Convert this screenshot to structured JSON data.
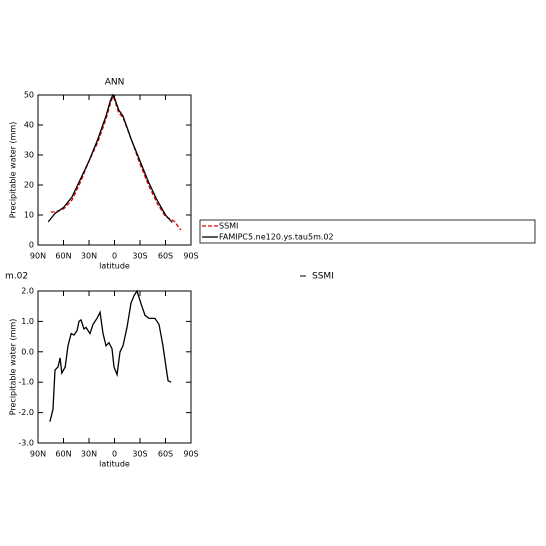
{
  "chart_data": [
    {
      "type": "line",
      "title": "ANN",
      "ylabel": "Precipitable water (mm)",
      "xlabel": "latitude",
      "xlim": [
        90,
        -90
      ],
      "xticks": [
        {
          "value": 90,
          "label": "90N"
        },
        {
          "value": 60,
          "label": "60N"
        },
        {
          "value": 30,
          "label": "30N"
        },
        0,
        {
          "value": -30,
          "label": "30S"
        },
        {
          "value": -60,
          "label": "60S"
        },
        {
          "value": -90,
          "label": "90S"
        }
      ],
      "ylim": [
        0,
        50
      ],
      "yticks": [
        0,
        10,
        20,
        30,
        40,
        50
      ],
      "legend": "right",
      "series": [
        {
          "name": "SSMI",
          "color": "#e00000",
          "line_style": "dashed",
          "x": [
            75,
            70,
            60,
            50,
            40,
            30,
            20,
            10,
            5,
            2,
            0,
            -5,
            -10,
            -20,
            -30,
            -40,
            -50,
            -60,
            -70,
            -78
          ],
          "values": [
            11,
            11,
            12,
            15,
            21,
            28,
            34,
            42,
            47,
            49.5,
            48.5,
            44,
            42.5,
            35,
            27,
            20,
            14,
            9.5,
            8,
            5
          ]
        },
        {
          "name": "FAMIPC5.ne120.ys.tau5m.02",
          "color": "#000000",
          "line_style": "solid",
          "x": [
            78,
            70,
            60,
            50,
            40,
            30,
            20,
            10,
            5,
            2,
            0,
            -5,
            -10,
            -20,
            -30,
            -40,
            -50,
            -60,
            -68
          ],
          "values": [
            7.7,
            10.5,
            12.5,
            16,
            22,
            28,
            35,
            43,
            48,
            50,
            49,
            45,
            43,
            35,
            28,
            21,
            15,
            10,
            7.5
          ]
        }
      ]
    },
    {
      "type": "line",
      "title": "m.02",
      "ylabel": "Precipitable water (mm)",
      "xlabel": "latitude",
      "xlim": [
        90,
        -90
      ],
      "xticks": [
        {
          "value": 90,
          "label": "90N"
        },
        {
          "value": 60,
          "label": "60N"
        },
        {
          "value": 30,
          "label": "30N"
        },
        0,
        {
          "value": -30,
          "label": "30S"
        },
        {
          "value": -60,
          "label": "60S"
        },
        {
          "value": -90,
          "label": "90S"
        }
      ],
      "ylim": [
        -3,
        2
      ],
      "yticks": [
        {
          "value": -3,
          "label": "-3.0"
        },
        {
          "value": -2,
          "label": "-2.0"
        },
        {
          "value": -1,
          "label": "-1.0"
        },
        {
          "value": 0,
          "label": "0.0"
        },
        {
          "value": 1,
          "label": "1.0"
        },
        {
          "value": 2,
          "label": "2.0"
        }
      ],
      "legend": "top",
      "series": [
        {
          "name": "SSMI",
          "color": "#000000",
          "line_style": "solid",
          "x": [
            76,
            72.4,
            70,
            66.5,
            64,
            62,
            58,
            54.7,
            51,
            47.6,
            44,
            41.8,
            39.4,
            35.9,
            33.5,
            28.8,
            25.3,
            20.6,
            17,
            13.5,
            10,
            6.5,
            2.9,
            0.6,
            -3,
            -6.5,
            -10,
            -14.7,
            -19.4,
            -23,
            -26.5,
            -31,
            -35.9,
            -40.6,
            -47.6,
            -52.4,
            -57,
            -60.6,
            -63,
            -66.5
          ],
          "values": [
            -2.3,
            -1.9,
            -0.6,
            -0.5,
            -0.2,
            -0.7,
            -0.5,
            0.2,
            0.6,
            0.55,
            0.7,
            1.0,
            1.05,
            0.75,
            0.8,
            0.6,
            0.9,
            1.1,
            1.3,
            0.6,
            0.2,
            0.3,
            0.1,
            -0.5,
            -0.75,
            0.0,
            0.2,
            0.8,
            1.6,
            1.85,
            2.0,
            1.6,
            1.2,
            1.1,
            1.1,
            0.9,
            0.2,
            -0.5,
            -0.95,
            -1.0
          ]
        }
      ]
    }
  ]
}
